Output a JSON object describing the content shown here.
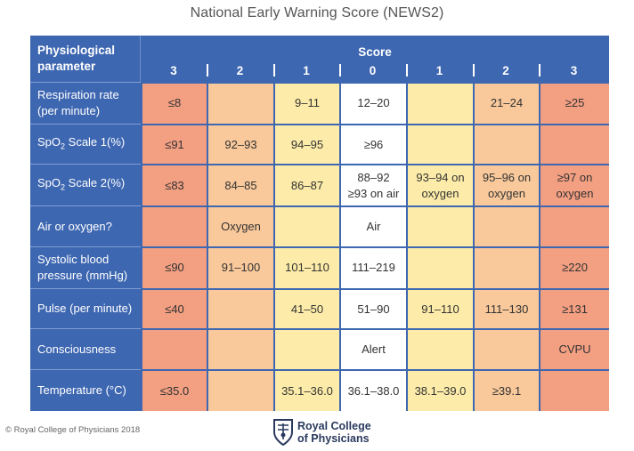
{
  "title": "National Early Warning Score (NEWS2)",
  "header": {
    "param_label": [
      "Physiological",
      "parameter"
    ],
    "score_label": "Score",
    "scores": [
      "3",
      "2",
      "1",
      "0",
      "1",
      "2",
      "3"
    ]
  },
  "rows": [
    {
      "param": [
        "Respiration rate",
        "(per minute)"
      ],
      "cells": [
        [
          "≤8"
        ],
        [
          ""
        ],
        [
          "9–11"
        ],
        [
          "12–20"
        ],
        [
          ""
        ],
        [
          "21–24"
        ],
        [
          "≥25"
        ]
      ]
    },
    {
      "param_pre": "SpO",
      "param_sub": "2",
      "param_post": " Scale 1(%)",
      "cells": [
        [
          "≤91"
        ],
        [
          "92–93"
        ],
        [
          "94–95"
        ],
        [
          "≥96"
        ],
        [
          ""
        ],
        [
          ""
        ],
        [
          ""
        ]
      ]
    },
    {
      "param_pre": "SpO",
      "param_sub": "2",
      "param_post": " Scale 2(%)",
      "cells": [
        [
          "≤83"
        ],
        [
          "84–85"
        ],
        [
          "86–87"
        ],
        [
          "88–92",
          "≥93 on air"
        ],
        [
          "93–94 on",
          "oxygen"
        ],
        [
          "95–96 on",
          "oxygen"
        ],
        [
          "≥97 on",
          "oxygen"
        ]
      ]
    },
    {
      "param": [
        "Air or oxygen?"
      ],
      "cells": [
        [
          ""
        ],
        [
          "Oxygen"
        ],
        [
          ""
        ],
        [
          "Air"
        ],
        [
          ""
        ],
        [
          ""
        ],
        [
          ""
        ]
      ]
    },
    {
      "param": [
        "Systolic blood",
        "pressure (mmHg)"
      ],
      "cells": [
        [
          "≤90"
        ],
        [
          "91–100"
        ],
        [
          "101–110"
        ],
        [
          "111–219"
        ],
        [
          ""
        ],
        [
          ""
        ],
        [
          "≥220"
        ]
      ]
    },
    {
      "param": [
        "Pulse (per minute)"
      ],
      "cells": [
        [
          "≤40"
        ],
        [
          ""
        ],
        [
          "41–50"
        ],
        [
          "51–90"
        ],
        [
          "91–110"
        ],
        [
          "111–130"
        ],
        [
          "≥131"
        ]
      ]
    },
    {
      "param": [
        "Consciousness"
      ],
      "cells": [
        [
          ""
        ],
        [
          ""
        ],
        [
          ""
        ],
        [
          "Alert"
        ],
        [
          ""
        ],
        [
          ""
        ],
        [
          "CVPU"
        ]
      ]
    },
    {
      "param": [
        "Temperature (°C)"
      ],
      "cells": [
        [
          "≤35.0"
        ],
        [
          ""
        ],
        [
          "35.1–36.0"
        ],
        [
          "36.1–38.0"
        ],
        [
          "38.1–39.0"
        ],
        [
          "≥39.1"
        ],
        [
          ""
        ]
      ]
    }
  ],
  "colors": {
    "header_blue": "#3e67b1",
    "score_3": "#f39f82",
    "score_2": "#f9c99b",
    "score_1": "#fdeca9",
    "score_0": "#ffffff"
  },
  "footer": {
    "copyright": "© Royal College of Physicians 2018",
    "logo_text": [
      "Royal College",
      "of Physicians"
    ],
    "logo_icon": "crest-icon"
  }
}
